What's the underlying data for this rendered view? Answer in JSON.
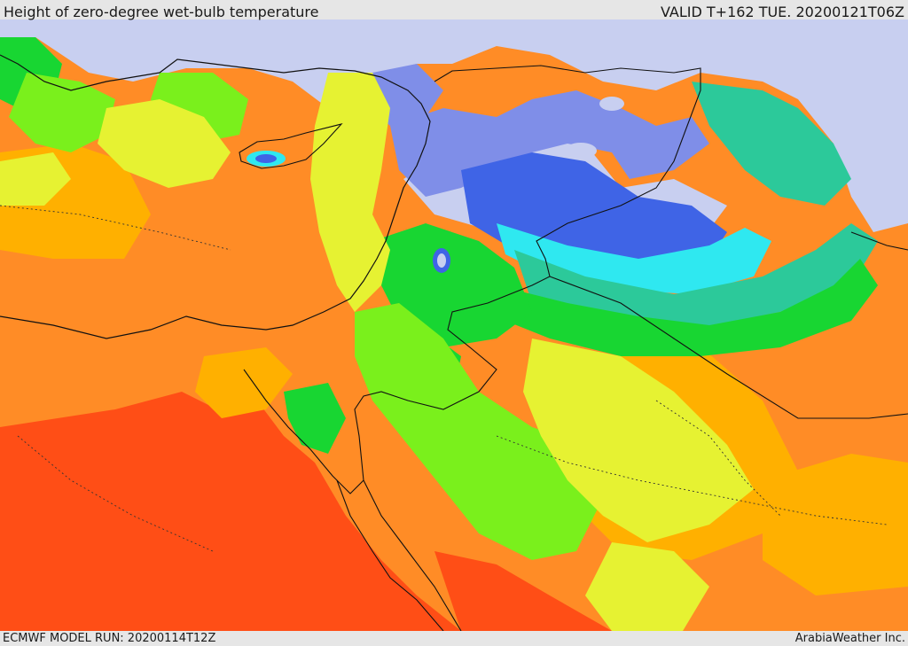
{
  "header": {
    "title": "Height of zero-degree wet-bulb temperature",
    "valid_time": "VALID T+162 TUE. 20200121T06Z"
  },
  "footer": {
    "model_run": "ECMWF MODEL RUN: 20200114T12Z",
    "credit": "ArabiaWeather Inc."
  },
  "map": {
    "region": "Eastern Mediterranean / Levant / Red Sea",
    "palette": {
      "lowest": "#c8cff0",
      "very_low": "#7f8ee8",
      "low": "#3f64e6",
      "cyan": "#2fe8f0",
      "teal": "#2cc99a",
      "green": "#18d632",
      "lime": "#7af01c",
      "yellow": "#e6f232",
      "amber": "#ffb000",
      "orange": "#ff8c26",
      "red_orange": "#ff4e16"
    }
  }
}
